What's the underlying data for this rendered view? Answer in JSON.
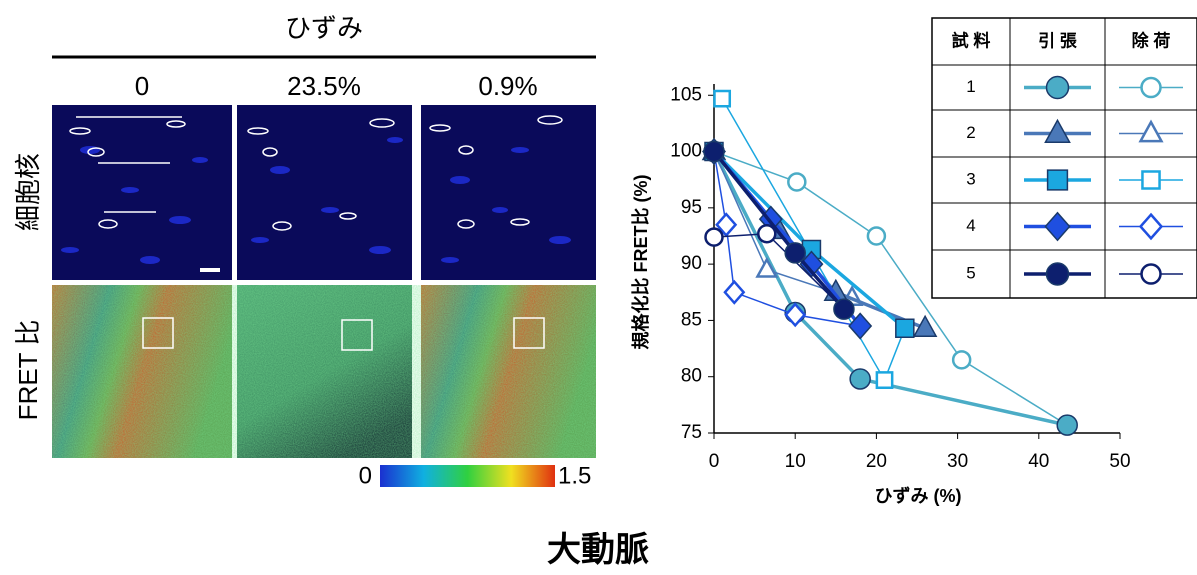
{
  "figure_title": "大動脈",
  "strain_header": "ひずみ",
  "columns": [
    "0",
    "23.5%",
    "0.9%"
  ],
  "rows": [
    "細胞核",
    "FRET 比"
  ],
  "colorbar_range": [
    0,
    1.5
  ],
  "chart_data": {
    "type": "line",
    "xlabel": "ひずみ (%)",
    "ylabel": "規格化比 FRET比 (%)",
    "xlim": [
      0,
      50
    ],
    "xticks": [
      0,
      10,
      20,
      30,
      40,
      50
    ],
    "ylim": [
      75,
      106
    ],
    "yticks": [
      75,
      80,
      85,
      90,
      95,
      100,
      105
    ],
    "legend_headers": [
      "試 料",
      "引 張",
      "除 荷"
    ],
    "series": [
      {
        "name": "1",
        "color": "#4bacc6",
        "marker": "circle",
        "loading": {
          "x": [
            0,
            10,
            18,
            43.5
          ],
          "values": [
            100,
            85.7,
            79.8,
            75.7
          ]
        },
        "unloading": {
          "x": [
            43.5,
            30.5,
            20,
            10.2,
            0
          ],
          "values": [
            75.7,
            81.5,
            92.5,
            97.3,
            100
          ]
        }
      },
      {
        "name": "2",
        "color": "#4a78b8",
        "marker": "triangle",
        "loading": {
          "x": [
            0,
            8,
            15,
            26
          ],
          "values": [
            100,
            93,
            87.5,
            84.3
          ]
        },
        "unloading": {
          "x": [
            26,
            17,
            6.5,
            0
          ],
          "values": [
            84.3,
            87,
            89.5,
            100
          ]
        }
      },
      {
        "name": "3",
        "color": "#1ba7e0",
        "marker": "square",
        "loading": {
          "x": [
            0,
            12,
            23.5
          ],
          "values": [
            100,
            91.3,
            84.3
          ]
        },
        "unloading": {
          "x": [
            23.5,
            21,
            1
          ],
          "values": [
            84.3,
            79.7,
            104.7
          ]
        }
      },
      {
        "name": "4",
        "color": "#1f4fe0",
        "marker": "diamond",
        "loading": {
          "x": [
            0,
            7,
            12,
            18
          ],
          "values": [
            100,
            94,
            90,
            84.5
          ]
        },
        "unloading": {
          "x": [
            18,
            10,
            2.5,
            1.5,
            0
          ],
          "values": [
            84.5,
            85.5,
            87.5,
            93.5,
            100
          ]
        }
      },
      {
        "name": "5",
        "color": "#0d1f6e",
        "marker": "circle",
        "loading": {
          "x": [
            0,
            10,
            16
          ],
          "values": [
            100,
            91,
            86
          ]
        },
        "unloading": {
          "x": [
            16,
            6.5,
            0
          ],
          "values": [
            86,
            92.7,
            92.4
          ]
        }
      }
    ]
  }
}
